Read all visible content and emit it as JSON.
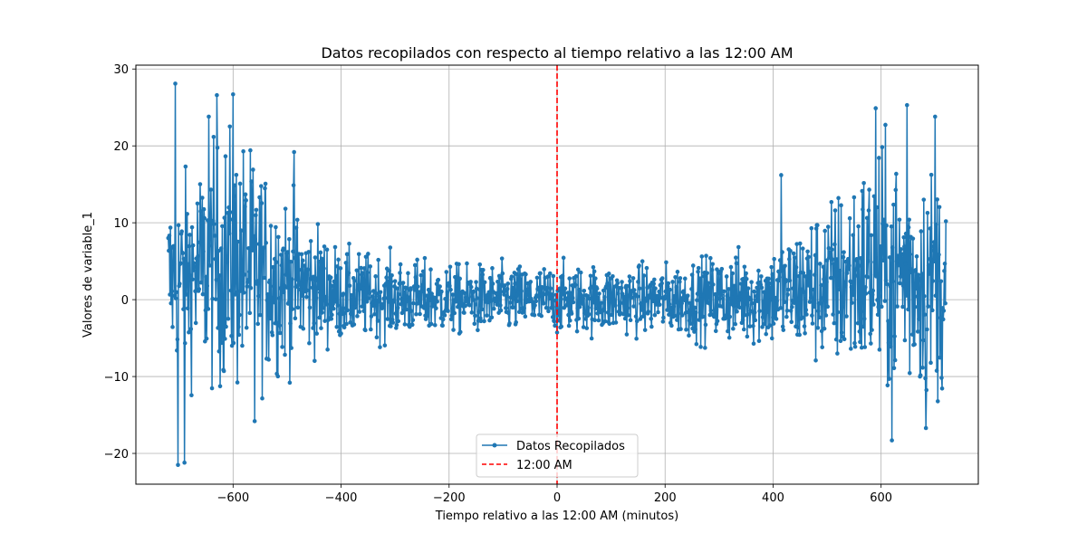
{
  "chart_data": {
    "type": "line",
    "title": "Datos recopilados con respecto al tiempo relativo a las 12:00 AM",
    "xlabel": "Tiempo relativo a las 12:00 AM (minutos)",
    "ylabel": "Valores de variable_1",
    "xlim": [
      -780,
      780
    ],
    "ylim": [
      -24,
      30.5
    ],
    "xticks": [
      -600,
      -400,
      -200,
      0,
      200,
      400,
      600
    ],
    "xtick_labels": [
      "−600",
      "−400",
      "−200",
      "0",
      "200",
      "400",
      "600"
    ],
    "yticks": [
      -20,
      -10,
      0,
      10,
      20,
      30
    ],
    "ytick_labels": [
      "−20",
      "−10",
      "0",
      "10",
      "20",
      "30"
    ],
    "grid": true,
    "legend_position": "lower-center",
    "series": [
      {
        "name": "Datos Recopilados",
        "color": "#1f77b4",
        "marker": "circle",
        "x_range": [
          -720,
          720
        ],
        "x_step": 1,
        "spread_envelope": [
          {
            "x": -720,
            "y_min": -10,
            "y_max": 15
          },
          {
            "x": -600,
            "y_min": -14,
            "y_max": 24
          },
          {
            "x": -500,
            "y_min": -10,
            "y_max": 15
          },
          {
            "x": -400,
            "y_min": -6,
            "y_max": 7
          },
          {
            "x": -200,
            "y_min": -5,
            "y_max": 5
          },
          {
            "x": 0,
            "y_min": -5,
            "y_max": 5
          },
          {
            "x": 200,
            "y_min": -5,
            "y_max": 5
          },
          {
            "x": 400,
            "y_min": -7,
            "y_max": 8
          },
          {
            "x": 500,
            "y_min": -10,
            "y_max": 14
          },
          {
            "x": 600,
            "y_min": -14,
            "y_max": 22
          },
          {
            "x": 720,
            "y_min": -14,
            "y_max": 18
          }
        ],
        "extremes": [
          {
            "x": -707,
            "y": 28.1
          },
          {
            "x": -702,
            "y": -21.5
          },
          {
            "x": -690,
            "y": -21.2
          },
          {
            "x": -630,
            "y": 26.6
          },
          {
            "x": -600,
            "y": 26.7
          },
          {
            "x": -645,
            "y": 23.8
          },
          {
            "x": -560,
            "y": 19.7
          },
          {
            "x": -487,
            "y": 19.2
          },
          {
            "x": -560,
            "y": -15.8
          },
          {
            "x": 590,
            "y": 24.9
          },
          {
            "x": 648,
            "y": 25.3
          },
          {
            "x": 700,
            "y": 23.8
          },
          {
            "x": 620,
            "y": -18.3
          },
          {
            "x": 683,
            "y": -16.7
          },
          {
            "x": 415,
            "y": 16.2
          }
        ]
      },
      {
        "name": "12:00 AM",
        "color": "#ff0000",
        "style": "dashed",
        "type": "vline",
        "x": 0
      }
    ]
  }
}
